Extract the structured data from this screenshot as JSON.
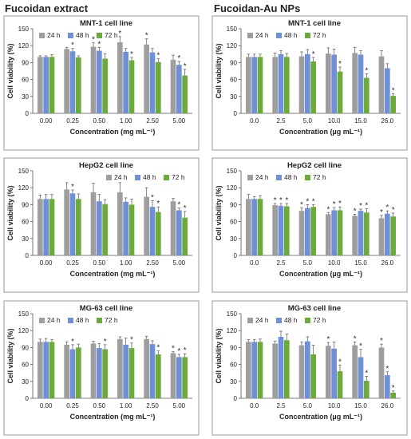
{
  "headers": {
    "left": "Fucoidan extract",
    "right": "Fucoidan-Au NPs"
  },
  "colors": {
    "24 h": "#9e9e9e",
    "48 h": "#6f8fd6",
    "72 h": "#6aab3a"
  },
  "chart_data": [
    {
      "type": "bar",
      "title": "MNT-1 cell line",
      "xlabel": "Concentration (mg mL⁻¹)",
      "ylabel": "Cell viability (%)",
      "ylim": [
        0,
        150
      ],
      "yticks": [
        0,
        30,
        60,
        90,
        120,
        150
      ],
      "categories": [
        "0.00",
        "0.25",
        "0.50",
        "1.00",
        "2.50",
        "5.00"
      ],
      "legend": "top-left",
      "series": [
        {
          "name": "24 h",
          "values": [
            100,
            114,
            118,
            126,
            122,
            95
          ],
          "errors": [
            2,
            3,
            7,
            10,
            10,
            8
          ],
          "sig": [
            false,
            false,
            true,
            true,
            true,
            false
          ]
        },
        {
          "name": "48 h",
          "values": [
            100,
            110,
            111,
            109,
            108,
            86
          ],
          "errors": [
            2,
            5,
            6,
            6,
            7,
            6
          ],
          "sig": [
            false,
            true,
            true,
            false,
            false,
            true
          ]
        },
        {
          "name": "72 h",
          "values": [
            100,
            99,
            97,
            94,
            91,
            67
          ],
          "errors": [
            4,
            3,
            9,
            5,
            6,
            11
          ],
          "sig": [
            false,
            false,
            false,
            true,
            true,
            true
          ]
        }
      ]
    },
    {
      "type": "bar",
      "title": "MNT-1 cell line",
      "xlabel": "Concentration (µg mL⁻¹)",
      "ylabel": "Cell viability (%)",
      "ylim": [
        0,
        150
      ],
      "yticks": [
        0,
        30,
        60,
        90,
        120,
        150
      ],
      "categories": [
        "0.0",
        "2.5",
        "5.0",
        "10.0",
        "15.0",
        "26.0"
      ],
      "legend": "top-left",
      "series": [
        {
          "name": "24 h",
          "values": [
            100,
            100,
            101,
            106,
            107,
            101
          ],
          "errors": [
            5,
            7,
            8,
            10,
            10,
            10
          ],
          "sig": [
            false,
            false,
            false,
            false,
            false,
            false
          ]
        },
        {
          "name": "48 h",
          "values": [
            100,
            105,
            105,
            104,
            104,
            80
          ],
          "errors": [
            5,
            6,
            8,
            10,
            7,
            8
          ],
          "sig": [
            false,
            false,
            false,
            false,
            false,
            false
          ]
        },
        {
          "name": "72 h",
          "values": [
            100,
            100,
            92,
            74,
            63,
            31
          ],
          "errors": [
            5,
            6,
            7,
            8,
            7,
            4
          ],
          "sig": [
            false,
            false,
            true,
            true,
            true,
            true
          ]
        }
      ]
    },
    {
      "type": "bar",
      "title": "HepG2 cell line",
      "xlabel": "Concentration (mg mL⁻¹)",
      "ylabel": "Cell viability (%)",
      "ylim": [
        0,
        150
      ],
      "yticks": [
        0,
        30,
        60,
        90,
        120,
        150
      ],
      "categories": [
        "0.00",
        "0.25",
        "0.50",
        "1.00",
        "2.50",
        "5.00"
      ],
      "legend": "top-right",
      "series": [
        {
          "name": "24 h",
          "values": [
            100,
            117,
            112,
            112,
            104,
            96
          ],
          "errors": [
            7,
            12,
            16,
            17,
            16,
            5
          ],
          "sig": [
            false,
            false,
            false,
            false,
            false,
            false
          ]
        },
        {
          "name": "48 h",
          "values": [
            100,
            110,
            96,
            95,
            86,
            80
          ],
          "errors": [
            8,
            6,
            12,
            7,
            11,
            4
          ],
          "sig": [
            false,
            true,
            false,
            false,
            true,
            true
          ]
        },
        {
          "name": "72 h",
          "values": [
            100,
            100,
            91,
            90,
            77,
            67
          ],
          "errors": [
            8,
            9,
            8,
            10,
            9,
            11
          ],
          "sig": [
            false,
            false,
            false,
            false,
            true,
            true
          ]
        }
      ]
    },
    {
      "type": "bar",
      "title": "HepG2 cell line",
      "xlabel": "Concentration (µg mL⁻¹)",
      "ylabel": "Cell viability (%)",
      "ylim": [
        0,
        150
      ],
      "yticks": [
        0,
        30,
        60,
        90,
        120,
        150
      ],
      "categories": [
        "0.0",
        "2.5",
        "5.0",
        "10.0",
        "15.0",
        "26.0"
      ],
      "legend": "top-left",
      "series": [
        {
          "name": "24 h",
          "values": [
            100,
            89,
            79,
            73,
            70,
            66
          ],
          "errors": [
            8,
            3,
            5,
            3,
            3,
            5
          ],
          "sig": [
            false,
            true,
            true,
            true,
            true,
            true
          ]
        },
        {
          "name": "48 h",
          "values": [
            100,
            88,
            84,
            80,
            79,
            74
          ],
          "errors": [
            4,
            4,
            6,
            5,
            3,
            5
          ],
          "sig": [
            false,
            true,
            true,
            true,
            true,
            true
          ]
        },
        {
          "name": "72 h",
          "values": [
            100,
            87,
            86,
            80,
            76,
            69
          ],
          "errors": [
            6,
            5,
            4,
            6,
            7,
            6
          ],
          "sig": [
            false,
            true,
            true,
            true,
            true,
            true
          ]
        }
      ]
    },
    {
      "type": "bar",
      "title": "MG-63 cell line",
      "xlabel": "Concentration (mg mL⁻¹)",
      "ylabel": "Cell viability (%)",
      "ylim": [
        0,
        150
      ],
      "yticks": [
        0,
        30,
        60,
        90,
        120,
        150
      ],
      "categories": [
        "0.00",
        "0.25",
        "0.50",
        "1.00",
        "2.50",
        "5.00"
      ],
      "legend": "top-left",
      "series": [
        {
          "name": "24 h",
          "values": [
            100,
            95,
            97,
            105,
            105,
            80
          ],
          "errors": [
            5,
            5,
            4,
            4,
            5,
            3
          ],
          "sig": [
            false,
            false,
            false,
            false,
            false,
            true
          ]
        },
        {
          "name": "48 h",
          "values": [
            100,
            87,
            89,
            95,
            96,
            73
          ],
          "errors": [
            6,
            8,
            8,
            12,
            6,
            5
          ],
          "sig": [
            false,
            true,
            false,
            false,
            false,
            true
          ]
        },
        {
          "name": "72 h",
          "values": [
            100,
            90,
            87,
            89,
            78,
            73
          ],
          "errors": [
            4,
            6,
            8,
            9,
            6,
            6
          ],
          "sig": [
            false,
            false,
            true,
            true,
            true,
            true
          ]
        }
      ]
    },
    {
      "type": "bar",
      "title": "MG-63 cell line",
      "xlabel": "Concentration (µg mL⁻¹)",
      "ylabel": "Cell viability (%)",
      "ylim": [
        0,
        150
      ],
      "yticks": [
        0,
        30,
        60,
        90,
        120,
        150
      ],
      "categories": [
        "0.0",
        "2.5",
        "5.0",
        "10.0",
        "15.0",
        "26.0"
      ],
      "legend": "top-left",
      "series": [
        {
          "name": "24 h",
          "values": [
            100,
            97,
            94,
            93,
            94,
            90
          ],
          "errors": [
            4,
            4,
            6,
            6,
            6,
            6
          ],
          "sig": [
            false,
            false,
            false,
            true,
            true,
            true
          ]
        },
        {
          "name": "48 h",
          "values": [
            100,
            109,
            101,
            88,
            73,
            41
          ],
          "errors": [
            4,
            10,
            8,
            12,
            14,
            6
          ],
          "sig": [
            false,
            false,
            false,
            false,
            true,
            true
          ]
        },
        {
          "name": "72 h",
          "values": [
            100,
            103,
            78,
            48,
            31,
            10
          ],
          "errors": [
            5,
            11,
            16,
            11,
            8,
            3
          ],
          "sig": [
            false,
            false,
            false,
            true,
            true,
            true
          ]
        }
      ]
    }
  ]
}
